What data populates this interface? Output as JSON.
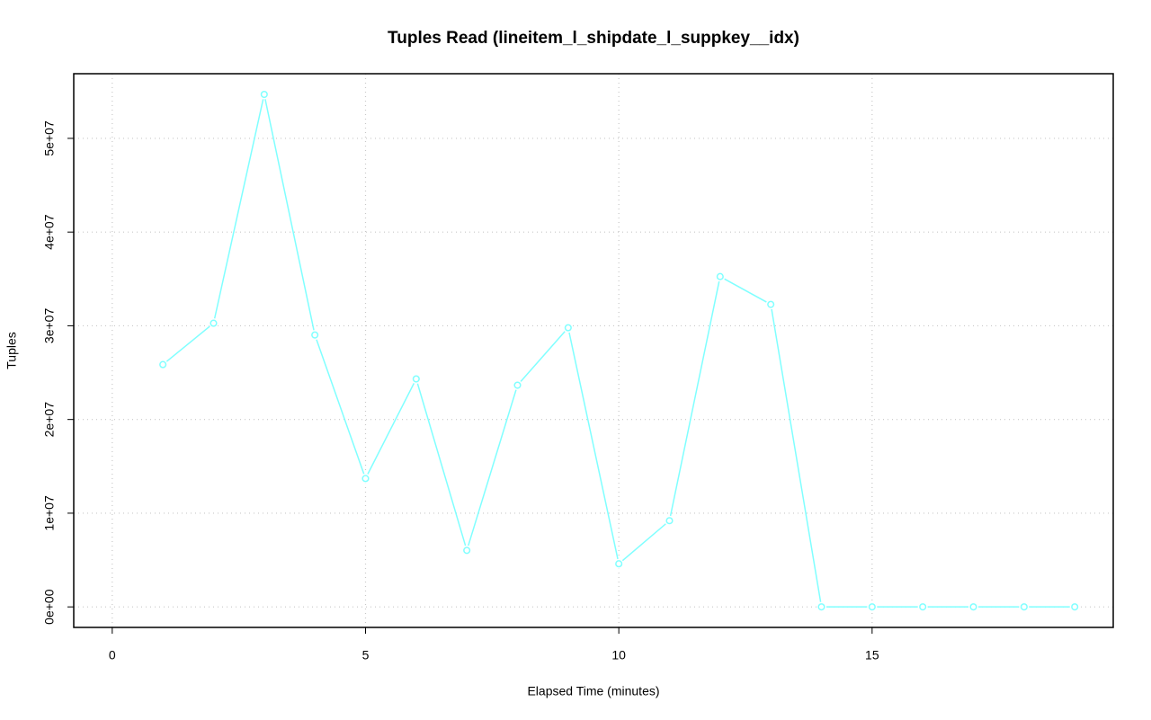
{
  "chart_data": {
    "type": "line",
    "title": "Tuples Read (lineitem_l_shipdate_l_suppkey__idx)",
    "x_label": "Elapsed Time (minutes)",
    "y_label": "Tuples",
    "x": [
      1,
      2,
      3,
      4,
      5,
      6,
      7,
      8,
      9,
      10,
      11,
      12,
      13,
      14,
      15,
      16,
      17,
      18,
      19
    ],
    "series": [
      {
        "name": "Tuples",
        "color": "#80ffff",
        "values": [
          25860000,
          30270000,
          54690000,
          29020000,
          13700000,
          24330000,
          6030000,
          23660000,
          29790000,
          4600000,
          9200000,
          35250000,
          32280000,
          0,
          0,
          0,
          0,
          0,
          0
        ]
      }
    ],
    "xlim": [
      -0.76,
      19.76
    ],
    "xticks": [
      0,
      5,
      10,
      15
    ],
    "ylim": [
      -2190000,
      56900000
    ],
    "yticks": [
      {
        "value": 0,
        "label": "0e+00"
      },
      {
        "value": 10000000,
        "label": "1e+07"
      },
      {
        "value": 20000000,
        "label": "2e+07"
      },
      {
        "value": 30000000,
        "label": "3e+07"
      },
      {
        "value": 40000000,
        "label": "4e+07"
      },
      {
        "value": 50000000,
        "label": "5e+07"
      }
    ],
    "grid": true
  }
}
